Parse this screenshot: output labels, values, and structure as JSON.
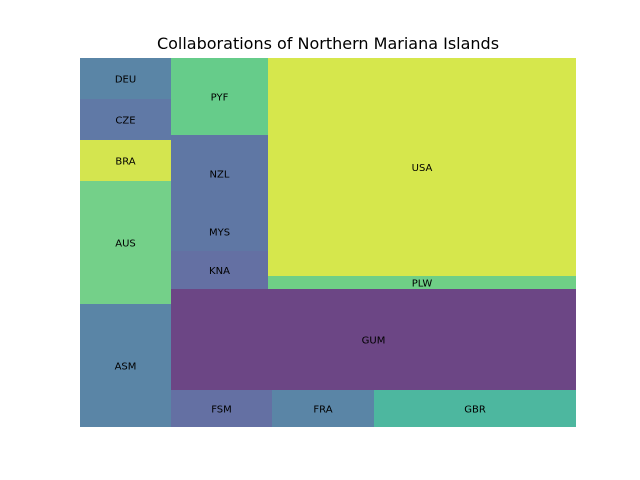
{
  "chart_data": {
    "type": "treemap",
    "title": "Collaborations of Northern Mariana Islands",
    "nodes": [
      {
        "label": "DEU",
        "value": 7.7,
        "color": "#5a85a6"
      },
      {
        "label": "CZE",
        "value": 7.7,
        "color": "#6079a6"
      },
      {
        "label": "BRA",
        "value": 7.7,
        "color": "#d4e54f"
      },
      {
        "label": "AUS",
        "value": 23.0,
        "color": "#74d089"
      },
      {
        "label": "ASM",
        "value": 23.0,
        "color": "#5a85a6"
      },
      {
        "label": "PYF",
        "value": 14.3,
        "color": "#66cc8a"
      },
      {
        "label": "NZL",
        "value": 21.5,
        "color": "#5f77a4"
      },
      {
        "label": "MYS",
        "value": 21.5,
        "color": "#5f77a4"
      },
      {
        "label": "KNA",
        "value": 7.2,
        "color": "#6470a3"
      },
      {
        "label": "USA",
        "value": 120.8,
        "color": "#d6e74c"
      },
      {
        "label": "PLW",
        "value": 7.5,
        "color": "#6fcf86"
      },
      {
        "label": "GUM",
        "value": 75.1,
        "color": "#6c4685"
      },
      {
        "label": "FSM",
        "value": 6.8,
        "color": "#6470a3"
      },
      {
        "label": "FRA",
        "value": 6.8,
        "color": "#5a85a6"
      },
      {
        "label": "GBR",
        "value": 13.5,
        "color": "#4db79f"
      }
    ]
  }
}
